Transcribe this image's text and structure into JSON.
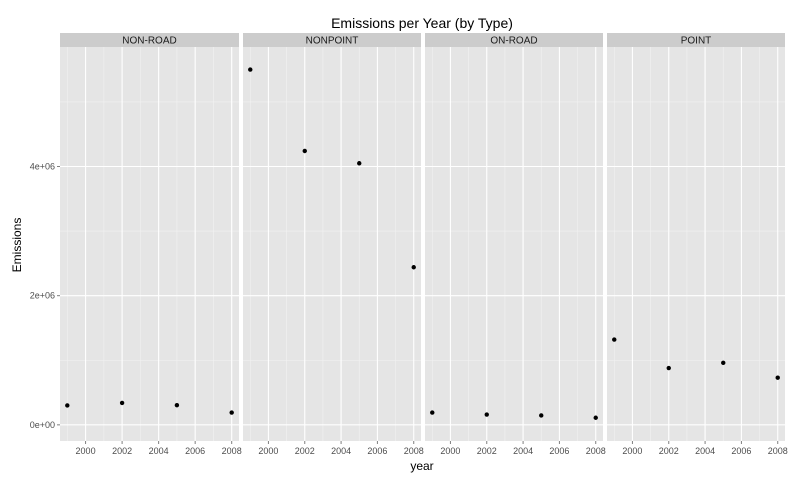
{
  "chart_data": {
    "type": "scatter",
    "title": "Emissions per Year (by Type)",
    "xlabel": "year",
    "ylabel": "Emissions",
    "xlim": [
      1998.6,
      2008.4
    ],
    "ylim": [
      -250000,
      5850000
    ],
    "x_ticks": [
      2000,
      2002,
      2004,
      2006,
      2008
    ],
    "y_ticks": [
      {
        "value": 0,
        "label": "0e+00"
      },
      {
        "value": 2000000,
        "label": "2e+06"
      },
      {
        "value": 4000000,
        "label": "4e+06"
      }
    ],
    "grid": true,
    "panel_background": "#e5e5e5",
    "strip_background": "#cccccc",
    "point_color": "#000000",
    "facets": [
      {
        "name": "NON-ROAD",
        "x": [
          1999,
          2002,
          2005,
          2008
        ],
        "y": [
          300000,
          340000,
          305000,
          190000
        ]
      },
      {
        "name": "NONPOINT",
        "x": [
          1999,
          2002,
          2005,
          2008
        ],
        "y": [
          5500000,
          4240000,
          4050000,
          2440000
        ]
      },
      {
        "name": "ON-ROAD",
        "x": [
          1999,
          2002,
          2005,
          2008
        ],
        "y": [
          190000,
          160000,
          145000,
          110000
        ]
      },
      {
        "name": "POINT",
        "x": [
          1999,
          2002,
          2005,
          2008
        ],
        "y": [
          1320000,
          880000,
          960000,
          730000
        ]
      }
    ]
  }
}
